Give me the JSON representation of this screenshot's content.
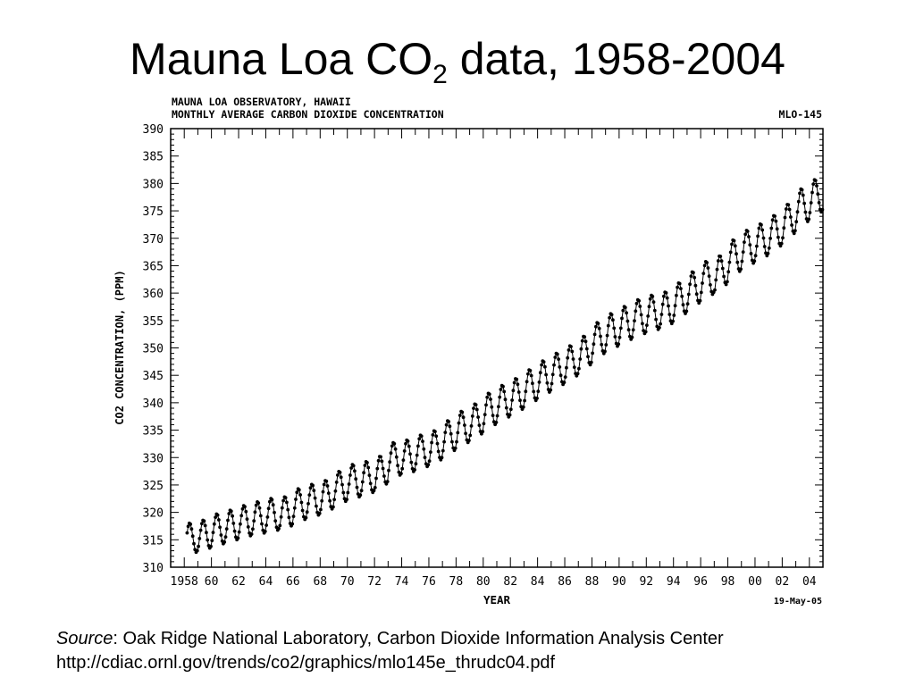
{
  "slide": {
    "title_main": "Mauna Loa CO",
    "title_sub": "2",
    "title_rest": " data, 1958-2004"
  },
  "source": {
    "label": "Source",
    "text": ": Oak Ridge National Laboratory, Carbon Dioxide Information Analysis Center",
    "url": "http://cdiac.ornl.gov/trends/co2/graphics/mlo145e_thrudc04.pdf"
  },
  "chart_data": {
    "type": "scatter",
    "title": "MAUNA LOA OBSERVATORY, HAWAII",
    "subtitle": "MONTHLY AVERAGE CARBON DIOXIDE CONCENTRATION",
    "corner_label": "MLO-145",
    "date_label": "19-May-05",
    "xlabel": "YEAR",
    "ylabel": "CO2 CONCENTRATION, (PPM)",
    "xlim": [
      1957,
      2005
    ],
    "ylim": [
      310,
      390
    ],
    "ytick_values": [
      310,
      315,
      320,
      325,
      330,
      335,
      340,
      345,
      350,
      355,
      360,
      365,
      370,
      375,
      380,
      385,
      390
    ],
    "ytick_labels": [
      "310",
      "315",
      "320",
      "325",
      "330",
      "335",
      "340",
      "345",
      "350",
      "355",
      "360",
      "365",
      "370",
      "375",
      "380",
      "385",
      "390"
    ],
    "xtick_values": [
      1958,
      1960,
      1962,
      1964,
      1966,
      1968,
      1970,
      1972,
      1974,
      1976,
      1978,
      1980,
      1982,
      1984,
      1986,
      1988,
      1990,
      1992,
      1994,
      1996,
      1998,
      2000,
      2002,
      2004
    ],
    "xtick_labels": [
      "1958",
      "60",
      "62",
      "64",
      "66",
      "68",
      "70",
      "72",
      "74",
      "76",
      "78",
      "80",
      "82",
      "84",
      "86",
      "88",
      "90",
      "92",
      "94",
      "96",
      "98",
      "00",
      "02",
      "04"
    ],
    "grid": false,
    "series": [
      {
        "values_note": "annual means (ppm) with seasonal cycle; monthly points",
        "years": [
          1958,
          1959,
          1960,
          1961,
          1962,
          1963,
          1964,
          1965,
          1966,
          1967,
          1968,
          1969,
          1970,
          1971,
          1972,
          1973,
          1974,
          1975,
          1976,
          1977,
          1978,
          1979,
          1980,
          1981,
          1982,
          1983,
          1984,
          1985,
          1986,
          1987,
          1988,
          1989,
          1990,
          1991,
          1992,
          1993,
          1994,
          1995,
          1996,
          1997,
          1998,
          1999,
          2000,
          2001,
          2002,
          2003,
          2004
        ],
        "annual_mean": [
          315.3,
          315.9,
          316.9,
          317.6,
          318.4,
          319.0,
          319.6,
          320.0,
          321.4,
          322.2,
          323.0,
          324.6,
          325.7,
          326.3,
          327.4,
          329.7,
          330.2,
          331.1,
          332.0,
          333.8,
          335.4,
          336.8,
          338.7,
          340.1,
          341.4,
          343.0,
          344.6,
          346.0,
          347.4,
          349.2,
          351.6,
          353.1,
          354.4,
          355.6,
          356.4,
          357.1,
          358.8,
          360.8,
          362.6,
          363.8,
          366.6,
          368.3,
          369.5,
          371.1,
          373.2,
          375.8,
          377.5
        ],
        "seasonal_amplitude": [
          2.8,
          2.8,
          2.9,
          2.9,
          2.9,
          3.0,
          3.0,
          3.0,
          3.0,
          3.0,
          3.0,
          3.0,
          3.1,
          3.1,
          3.1,
          3.1,
          3.1,
          3.1,
          3.1,
          3.1,
          3.2,
          3.2,
          3.2,
          3.2,
          3.2,
          3.2,
          3.2,
          3.2,
          3.2,
          3.2,
          3.2,
          3.3,
          3.3,
          3.3,
          3.3,
          3.3,
          3.3,
          3.3,
          3.3,
          3.3,
          3.3,
          3.3,
          3.3,
          3.3,
          3.3,
          3.4,
          3.4
        ]
      }
    ]
  }
}
